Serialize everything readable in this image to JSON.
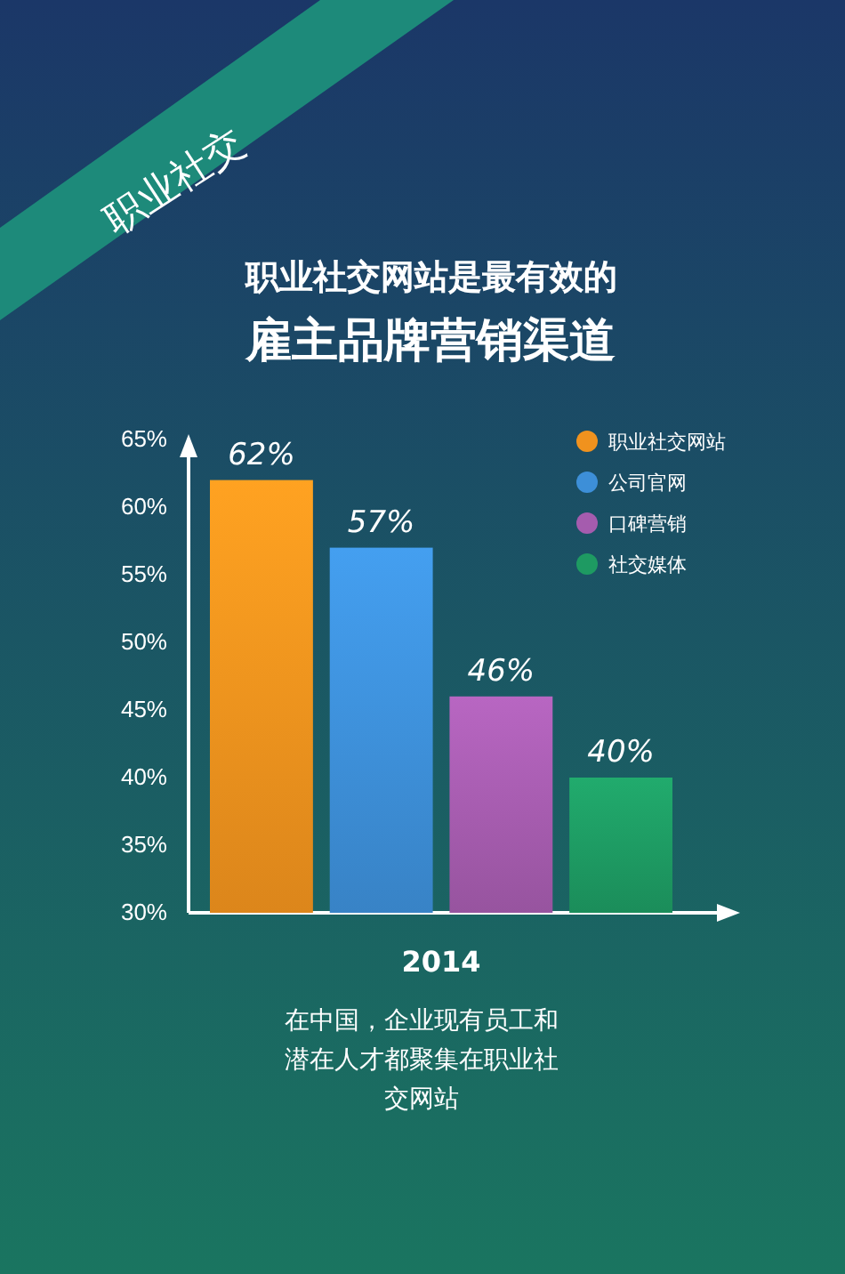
{
  "chart_data": {
    "type": "bar",
    "title": "职业社交网站是最有效的",
    "subtitle": "雇主品牌营销渠道",
    "categories": [
      null,
      null,
      null,
      null
    ],
    "xlabel": "2014",
    "series": [
      {
        "name": "职业社交网站",
        "color": "#f0921e",
        "values": [
          62,
          null,
          null,
          null
        ]
      },
      {
        "name": "公司官网",
        "color": "#3d8fd8",
        "values": [
          null,
          57,
          null,
          null
        ]
      },
      {
        "name": "口碑营销",
        "color": "#a55cae",
        "values": [
          null,
          null,
          46,
          null
        ]
      },
      {
        "name": "社交媒体",
        "color": "#1e9a62",
        "values": [
          null,
          null,
          null,
          40
        ]
      }
    ],
    "value_labels": [
      [
        "62%",
        null,
        null,
        null
      ],
      [
        null,
        "57%",
        null,
        null
      ],
      [
        null,
        null,
        "46%",
        null
      ],
      [
        null,
        null,
        null,
        "40%"
      ]
    ],
    "ylim": [
      30,
      65
    ],
    "yticks": [
      {
        "value": 30,
        "label": "30%"
      },
      {
        "value": 35,
        "label": "35%"
      },
      {
        "value": 40,
        "label": "40%"
      },
      {
        "value": 45,
        "label": "45%"
      },
      {
        "value": 50,
        "label": "50%"
      },
      {
        "value": 55,
        "label": "55%"
      },
      {
        "value": 60,
        "label": "60%"
      },
      {
        "value": 65,
        "label": "65%"
      }
    ],
    "legend": "top right",
    "grid": false,
    "annotations": [
      "职业社交",
      "在中国，企业现有员工和潜在人才都聚集在职业社交网站"
    ]
  }
}
